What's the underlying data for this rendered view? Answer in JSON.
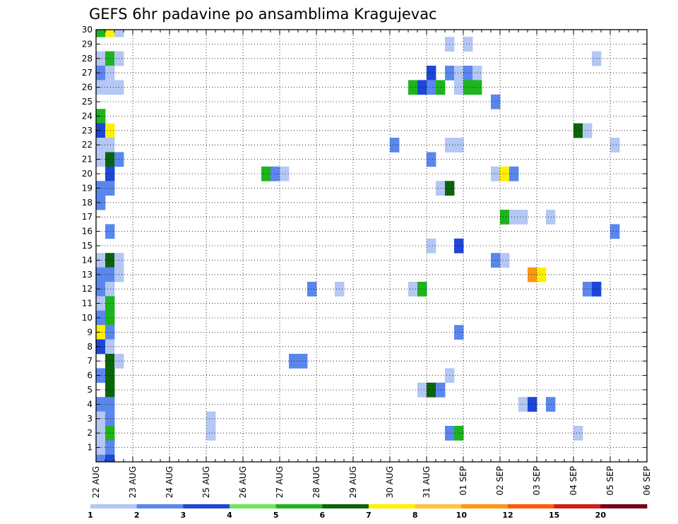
{
  "chart_data": {
    "type": "heatmap",
    "title": "GEFS 6hr padavine po ansamblima Kragujevac",
    "xlabel": "",
    "ylabel": "",
    "x_tick_labels": [
      "22 AUG",
      "23 AUG",
      "24 AUG",
      "25 AUG",
      "26 AUG",
      "27 AUG",
      "28 AUG",
      "29 AUG",
      "30 AUG",
      "31 AUG",
      "01 SEP",
      "02 SEP",
      "03 SEP",
      "04 SEP",
      "05 SEP",
      "06 SEP"
    ],
    "y_tick_labels": [
      "1",
      "2",
      "3",
      "4",
      "5",
      "6",
      "7",
      "8",
      "9",
      "10",
      "11",
      "12",
      "13",
      "14",
      "15",
      "16",
      "17",
      "18",
      "19",
      "20",
      "21",
      "22",
      "23",
      "24",
      "25",
      "26",
      "27",
      "28",
      "29",
      "30"
    ],
    "x_unit": "6-hour steps from 22 AUG 00Z",
    "xlim": [
      0,
      60
    ],
    "ylim": [
      0,
      30
    ],
    "grid": true,
    "colorbar": {
      "labels": [
        "1",
        "2",
        "3",
        "4",
        "5",
        "6",
        "7",
        "8",
        "10",
        "12",
        "15",
        "20"
      ],
      "colors": [
        "#b4c7f5",
        "#5a87ee",
        "#1e46d7",
        "#6ee65a",
        "#1eb41e",
        "#0a640a",
        "#fff000",
        "#ffc33c",
        "#ff9614",
        "#ff5a0a",
        "#d21e14",
        "#780014"
      ]
    },
    "cells": [
      {
        "member": 30,
        "step": 0,
        "level": 5
      },
      {
        "member": 30,
        "step": 1,
        "level": 7
      },
      {
        "member": 30,
        "step": 2,
        "level": 1
      },
      {
        "member": 29,
        "step": 38,
        "level": 1
      },
      {
        "member": 29,
        "step": 40,
        "level": 1
      },
      {
        "member": 28,
        "step": 0,
        "level": 1
      },
      {
        "member": 28,
        "step": 1,
        "level": 5
      },
      {
        "member": 28,
        "step": 2,
        "level": 1
      },
      {
        "member": 28,
        "step": 54,
        "level": 1
      },
      {
        "member": 27,
        "step": 0,
        "level": 2
      },
      {
        "member": 27,
        "step": 1,
        "level": 1
      },
      {
        "member": 27,
        "step": 36,
        "level": 3
      },
      {
        "member": 27,
        "step": 38,
        "level": 2
      },
      {
        "member": 27,
        "step": 39,
        "level": 1
      },
      {
        "member": 27,
        "step": 40,
        "level": 2
      },
      {
        "member": 27,
        "step": 41,
        "level": 1
      },
      {
        "member": 26,
        "step": 0,
        "level": 1
      },
      {
        "member": 26,
        "step": 1,
        "level": 1
      },
      {
        "member": 26,
        "step": 2,
        "level": 1
      },
      {
        "member": 26,
        "step": 34,
        "level": 5
      },
      {
        "member": 26,
        "step": 35,
        "level": 3
      },
      {
        "member": 26,
        "step": 36,
        "level": 2
      },
      {
        "member": 26,
        "step": 37,
        "level": 5
      },
      {
        "member": 26,
        "step": 39,
        "level": 1
      },
      {
        "member": 26,
        "step": 40,
        "level": 5
      },
      {
        "member": 26,
        "step": 41,
        "level": 5
      },
      {
        "member": 25,
        "step": 43,
        "level": 2
      },
      {
        "member": 24,
        "step": 0,
        "level": 5
      },
      {
        "member": 23,
        "step": 0,
        "level": 3
      },
      {
        "member": 23,
        "step": 1,
        "level": 7
      },
      {
        "member": 23,
        "step": 52,
        "level": 6
      },
      {
        "member": 23,
        "step": 53,
        "level": 1
      },
      {
        "member": 22,
        "step": 0,
        "level": 1
      },
      {
        "member": 22,
        "step": 1,
        "level": 1
      },
      {
        "member": 22,
        "step": 32,
        "level": 2
      },
      {
        "member": 22,
        "step": 38,
        "level": 1
      },
      {
        "member": 22,
        "step": 39,
        "level": 1
      },
      {
        "member": 22,
        "step": 56,
        "level": 1
      },
      {
        "member": 21,
        "step": 0,
        "level": 1
      },
      {
        "member": 21,
        "step": 1,
        "level": 6
      },
      {
        "member": 21,
        "step": 2,
        "level": 2
      },
      {
        "member": 21,
        "step": 36,
        "level": 2
      },
      {
        "member": 20,
        "step": 1,
        "level": 3
      },
      {
        "member": 20,
        "step": 18,
        "level": 5
      },
      {
        "member": 20,
        "step": 19,
        "level": 2
      },
      {
        "member": 20,
        "step": 20,
        "level": 1
      },
      {
        "member": 20,
        "step": 43,
        "level": 1
      },
      {
        "member": 20,
        "step": 44,
        "level": 7
      },
      {
        "member": 20,
        "step": 45,
        "level": 2
      },
      {
        "member": 19,
        "step": 0,
        "level": 2
      },
      {
        "member": 19,
        "step": 1,
        "level": 2
      },
      {
        "member": 19,
        "step": 37,
        "level": 1
      },
      {
        "member": 19,
        "step": 38,
        "level": 6
      },
      {
        "member": 18,
        "step": 0,
        "level": 2
      },
      {
        "member": 17,
        "step": 44,
        "level": 5
      },
      {
        "member": 17,
        "step": 45,
        "level": 1
      },
      {
        "member": 17,
        "step": 46,
        "level": 1
      },
      {
        "member": 17,
        "step": 49,
        "level": 1
      },
      {
        "member": 16,
        "step": 1,
        "level": 2
      },
      {
        "member": 16,
        "step": 56,
        "level": 2
      },
      {
        "member": 15,
        "step": 36,
        "level": 1
      },
      {
        "member": 15,
        "step": 39,
        "level": 3
      },
      {
        "member": 14,
        "step": 0,
        "level": 1
      },
      {
        "member": 14,
        "step": 1,
        "level": 6
      },
      {
        "member": 14,
        "step": 2,
        "level": 1
      },
      {
        "member": 14,
        "step": 43,
        "level": 2
      },
      {
        "member": 14,
        "step": 44,
        "level": 1
      },
      {
        "member": 13,
        "step": 0,
        "level": 2
      },
      {
        "member": 13,
        "step": 1,
        "level": 2
      },
      {
        "member": 13,
        "step": 2,
        "level": 1
      },
      {
        "member": 13,
        "step": 47,
        "level": 9
      },
      {
        "member": 13,
        "step": 48,
        "level": 7
      },
      {
        "member": 12,
        "step": 0,
        "level": 2
      },
      {
        "member": 12,
        "step": 1,
        "level": 1
      },
      {
        "member": 12,
        "step": 23,
        "level": 2
      },
      {
        "member": 12,
        "step": 26,
        "level": 1
      },
      {
        "member": 12,
        "step": 34,
        "level": 1
      },
      {
        "member": 12,
        "step": 35,
        "level": 5
      },
      {
        "member": 12,
        "step": 53,
        "level": 2
      },
      {
        "member": 12,
        "step": 54,
        "level": 3
      },
      {
        "member": 11,
        "step": 0,
        "level": 1
      },
      {
        "member": 11,
        "step": 1,
        "level": 5
      },
      {
        "member": 10,
        "step": 0,
        "level": 2
      },
      {
        "member": 10,
        "step": 1,
        "level": 5
      },
      {
        "member": 9,
        "step": 0,
        "level": 7
      },
      {
        "member": 9,
        "step": 1,
        "level": 2
      },
      {
        "member": 9,
        "step": 39,
        "level": 2
      },
      {
        "member": 8,
        "step": 0,
        "level": 3
      },
      {
        "member": 8,
        "step": 1,
        "level": 1
      },
      {
        "member": 7,
        "step": 1,
        "level": 6
      },
      {
        "member": 7,
        "step": 2,
        "level": 1
      },
      {
        "member": 7,
        "step": 21,
        "level": 2
      },
      {
        "member": 7,
        "step": 22,
        "level": 2
      },
      {
        "member": 6,
        "step": 0,
        "level": 2
      },
      {
        "member": 6,
        "step": 1,
        "level": 6
      },
      {
        "member": 6,
        "step": 38,
        "level": 1
      },
      {
        "member": 5,
        "step": 1,
        "level": 6
      },
      {
        "member": 5,
        "step": 35,
        "level": 1
      },
      {
        "member": 5,
        "step": 36,
        "level": 6
      },
      {
        "member": 5,
        "step": 37,
        "level": 2
      },
      {
        "member": 4,
        "step": 0,
        "level": 2
      },
      {
        "member": 4,
        "step": 1,
        "level": 2
      },
      {
        "member": 4,
        "step": 46,
        "level": 1
      },
      {
        "member": 4,
        "step": 47,
        "level": 3
      },
      {
        "member": 4,
        "step": 49,
        "level": 2
      },
      {
        "member": 3,
        "step": 0,
        "level": 1
      },
      {
        "member": 3,
        "step": 1,
        "level": 2
      },
      {
        "member": 3,
        "step": 12,
        "level": 1
      },
      {
        "member": 2,
        "step": 0,
        "level": 1
      },
      {
        "member": 2,
        "step": 1,
        "level": 5
      },
      {
        "member": 2,
        "step": 12,
        "level": 1
      },
      {
        "member": 2,
        "step": 38,
        "level": 2
      },
      {
        "member": 2,
        "step": 39,
        "level": 5
      },
      {
        "member": 2,
        "step": 52,
        "level": 1
      },
      {
        "member": 1,
        "step": 0,
        "level": 1
      },
      {
        "member": 1,
        "step": 1,
        "level": 2
      },
      {
        "member": 0,
        "step": 0,
        "level": 2
      },
      {
        "member": 0,
        "step": 1,
        "level": 3
      }
    ]
  }
}
